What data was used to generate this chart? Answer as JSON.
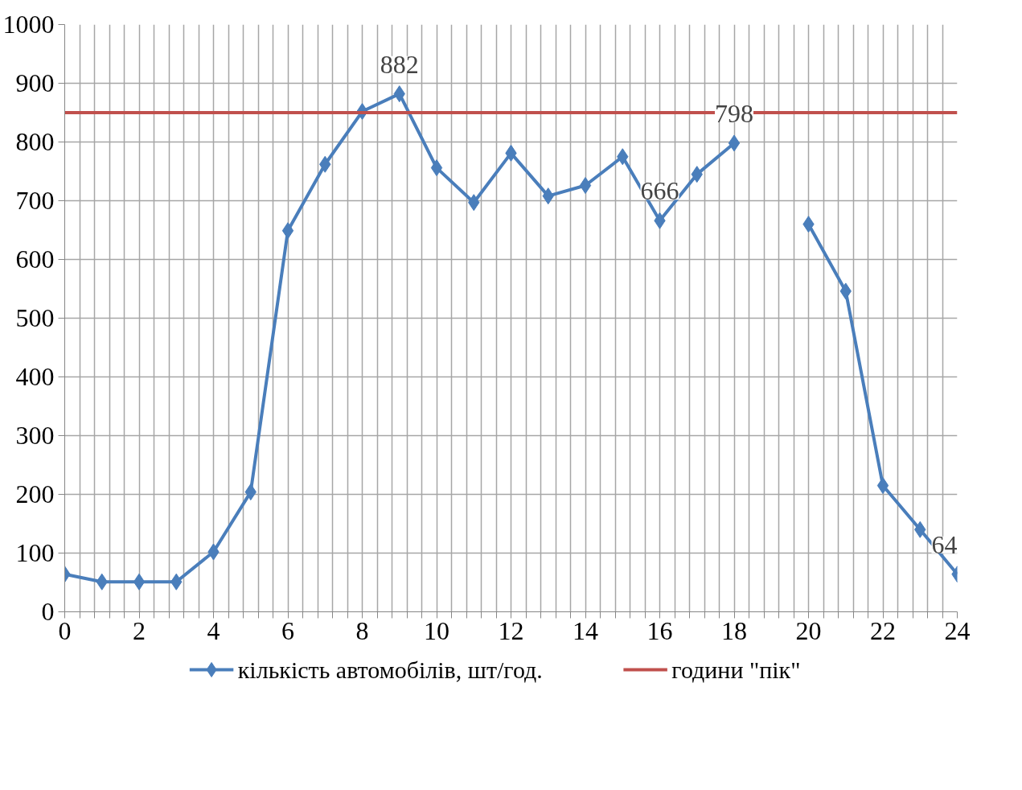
{
  "chart_data": {
    "type": "line",
    "x": [
      0,
      1,
      2,
      3,
      4,
      5,
      6,
      7,
      8,
      9,
      10,
      11,
      12,
      13,
      14,
      15,
      16,
      17,
      18,
      19,
      20,
      21,
      22,
      23,
      24
    ],
    "series": [
      {
        "name": "кількість автомобілів, шт/год.",
        "color": "#4a7ebb",
        "values": [
          64,
          51,
          51,
          51,
          102,
          204,
          649,
          762,
          852,
          882,
          756,
          697,
          781,
          708,
          726,
          775,
          666,
          745,
          798,
          null,
          660,
          546,
          215,
          140,
          64
        ],
        "value_labels": [
          null,
          null,
          null,
          null,
          null,
          null,
          null,
          null,
          null,
          "882",
          null,
          null,
          null,
          null,
          null,
          null,
          "666",
          null,
          "798",
          null,
          null,
          null,
          null,
          null,
          "64"
        ]
      }
    ],
    "ref_lines": [
      {
        "axis": "y",
        "value": 850,
        "label": "години \"пік\"",
        "color": "#c0504d",
        "line_style": "solid"
      }
    ],
    "xlim": [
      0,
      24
    ],
    "ylim": [
      0,
      1000
    ],
    "xticks": [
      0,
      {
        "value": 0.4,
        "label": null
      },
      {
        "value": 0.8,
        "label": null
      },
      {
        "value": 1.2,
        "label": null
      },
      {
        "value": 1.6,
        "label": null
      },
      2,
      {
        "value": 2.4,
        "label": null
      },
      {
        "value": 2.8,
        "label": null
      },
      {
        "value": 3.2,
        "label": null
      },
      {
        "value": 3.6,
        "label": null
      },
      4,
      {
        "value": 4.4,
        "label": null
      },
      {
        "value": 4.8,
        "label": null
      },
      {
        "value": 5.2,
        "label": null
      },
      {
        "value": 5.6,
        "label": null
      },
      6,
      {
        "value": 6.4,
        "label": null
      },
      {
        "value": 6.8,
        "label": null
      },
      {
        "value": 7.2,
        "label": null
      },
      {
        "value": 7.6,
        "label": null
      },
      8,
      {
        "value": 8.4,
        "label": null
      },
      {
        "value": 8.8,
        "label": null
      },
      {
        "value": 9.2,
        "label": null
      },
      {
        "value": 9.6,
        "label": null
      },
      10,
      {
        "value": 10.4,
        "label": null
      },
      {
        "value": 10.8,
        "label": null
      },
      {
        "value": 11.2,
        "label": null
      },
      {
        "value": 11.6,
        "label": null
      },
      12,
      {
        "value": 12.4,
        "label": null
      },
      {
        "value": 12.8,
        "label": null
      },
      {
        "value": 13.2,
        "label": null
      },
      {
        "value": 13.6,
        "label": null
      },
      14,
      {
        "value": 14.4,
        "label": null
      },
      {
        "value": 14.8,
        "label": null
      },
      {
        "value": 15.2,
        "label": null
      },
      {
        "value": 15.6,
        "label": null
      },
      16,
      {
        "value": 16.4,
        "label": null
      },
      {
        "value": 16.8,
        "label": null
      },
      {
        "value": 17.2,
        "label": null
      },
      {
        "value": 17.6,
        "label": null
      },
      18,
      {
        "value": 18.4,
        "label": null
      },
      {
        "value": 18.8,
        "label": null
      },
      {
        "value": 19.2,
        "label": null
      },
      {
        "value": 19.6,
        "label": null
      },
      20,
      {
        "value": 20.4,
        "label": null
      },
      {
        "value": 20.8,
        "label": null
      },
      {
        "value": 21.2,
        "label": null
      },
      {
        "value": 21.6,
        "label": null
      },
      22,
      {
        "value": 22.4,
        "label": null
      },
      {
        "value": 22.8,
        "label": null
      },
      {
        "value": 23.2,
        "label": null
      },
      {
        "value": 23.6,
        "label": null
      },
      24
    ],
    "yticks": [
      0,
      100,
      200,
      300,
      400,
      500,
      600,
      700,
      800,
      900,
      1000
    ],
    "grid": true,
    "legend": "bottom",
    "marker": "diamond",
    "line_style": "solid"
  }
}
